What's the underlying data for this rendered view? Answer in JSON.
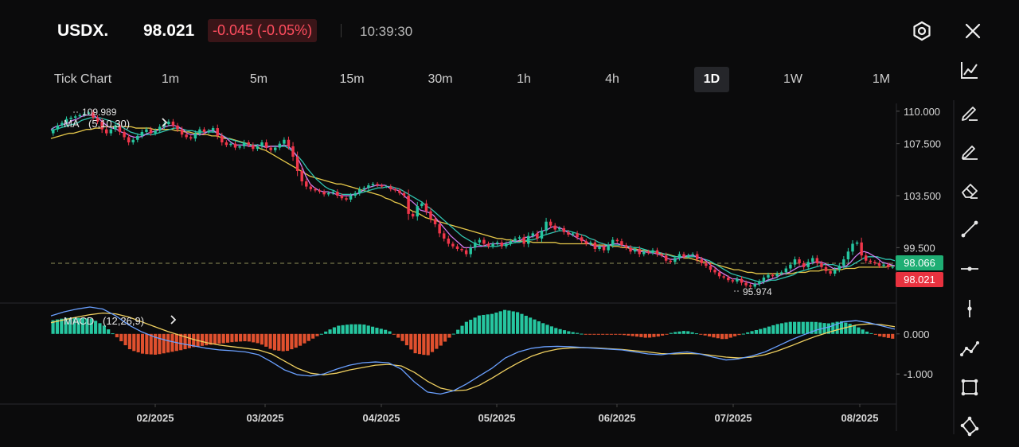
{
  "header": {
    "symbol": "USDX.",
    "price": "98.021",
    "change": "-0.045 (-0.05%)",
    "time": "10:39:30"
  },
  "tabs": [
    {
      "label": "Tick Chart",
      "active": false
    },
    {
      "label": "1m",
      "active": false
    },
    {
      "label": "5m",
      "active": false
    },
    {
      "label": "15m",
      "active": false
    },
    {
      "label": "30m",
      "active": false
    },
    {
      "label": "1h",
      "active": false
    },
    {
      "label": "4h",
      "active": false
    },
    {
      "label": "1D",
      "active": true
    },
    {
      "label": "1W",
      "active": false
    },
    {
      "label": "1M",
      "active": false
    }
  ],
  "toolbar": {
    "icons": [
      "line-chart-icon",
      "pencil-icon",
      "pen-icon",
      "eraser-icon",
      "trend-line-icon",
      "horizontal-line-icon",
      "vertical-line-icon",
      "polyline-icon",
      "rectangle-icon",
      "network-icon"
    ]
  },
  "colors": {
    "up": "#26c6a0",
    "down": "#f0364a",
    "ma5": "#d07cf0",
    "ma10": "#30c4b0",
    "ma30": "#e6c84a",
    "dif": "#6aa0ff",
    "dea": "#f0d060",
    "background": "#0b0b0c"
  },
  "chart_data": [
    {
      "type": "candlestick",
      "indicator_label": "MA",
      "indicator_params": "(5,10,30)",
      "y_tick_labels": [
        "110.000",
        "107.500",
        "103.500",
        "99.500"
      ],
      "y_ticks": [
        110.0,
        107.5,
        103.5,
        99.5
      ],
      "x_tick_labels": [
        "02/2025",
        "03/2025",
        "04/2025",
        "05/2025",
        "06/2025",
        "07/2025",
        "08/2025"
      ],
      "ylim": [
        95.3,
        110.6
      ],
      "high_annotation": {
        "label": "109.989",
        "value": 109.989
      },
      "low_annotation": {
        "label": "95.974",
        "value": 95.974
      },
      "last_value_label": "98.066",
      "current_price_label": "98.021",
      "reference_line": 98.066,
      "close": [
        108.6,
        108.9,
        109.1,
        109.4,
        109.5,
        109.6,
        109.7,
        109.8,
        109.9,
        109.5,
        109.2,
        108.6,
        108.3,
        108.6,
        108.9,
        108.4,
        108.0,
        107.6,
        107.8,
        108.1,
        108.4,
        108.6,
        108.3,
        108.5,
        108.8,
        109.0,
        109.2,
        108.9,
        108.6,
        108.2,
        108.0,
        107.9,
        108.3,
        108.6,
        108.4,
        108.5,
        108.7,
        108.1,
        107.6,
        107.4,
        107.5,
        107.2,
        107.3,
        107.6,
        107.4,
        107.1,
        107.3,
        107.6,
        107.2,
        107.0,
        107.2,
        107.5,
        107.8,
        107.3,
        106.5,
        105.4,
        104.6,
        104.2,
        104.0,
        103.9,
        103.8,
        103.6,
        103.7,
        103.8,
        103.5,
        103.3,
        103.2,
        103.5,
        103.7,
        104.0,
        104.1,
        104.3,
        104.4,
        104.3,
        104.2,
        104.2,
        104.0,
        103.9,
        103.7,
        103.5,
        102.1,
        101.9,
        102.7,
        102.9,
        102.3,
        101.7,
        101.3,
        100.6,
        100.2,
        99.8,
        99.6,
        99.4,
        99.3,
        99.0,
        99.5,
        99.9,
        100.1,
        99.8,
        99.6,
        99.8,
        99.9,
        99.6,
        99.8,
        100.0,
        100.2,
        100.3,
        99.8,
        100.4,
        100.6,
        100.2,
        100.8,
        101.5,
        101.2,
        100.9,
        101.0,
        100.7,
        100.5,
        100.6,
        100.3,
        100.0,
        99.8,
        99.9,
        99.4,
        99.6,
        99.3,
        99.7,
        100.1,
        100.0,
        99.7,
        99.5,
        99.2,
        99.4,
        99.0,
        99.2,
        99.1,
        99.3,
        99.0,
        98.9,
        98.5,
        98.4,
        98.7,
        99.0,
        98.8,
        98.9,
        99.0,
        98.6,
        98.3,
        98.1,
        97.8,
        97.6,
        97.3,
        97.2,
        97.0,
        96.9,
        97.1,
        96.8,
        96.6,
        96.5,
        96.7,
        96.9,
        97.2,
        97.4,
        97.3,
        97.5,
        97.6,
        97.9,
        98.2,
        98.6,
        98.3,
        98.0,
        98.4,
        98.7,
        98.3,
        98.0,
        97.7,
        97.5,
        97.8,
        98.1,
        98.6,
        99.2,
        99.8,
        99.9,
        98.9,
        98.5,
        98.4,
        98.3,
        98.1,
        98.2,
        98.0,
        98.021
      ],
      "ma5": [
        108.6,
        108.8,
        108.9,
        109.0,
        109.1,
        109.3,
        109.4,
        109.6,
        109.7,
        109.7,
        109.6,
        109.4,
        109.1,
        108.8,
        108.7,
        108.6,
        108.4,
        108.3,
        108.1,
        108.0,
        108.0,
        108.1,
        108.3,
        108.4,
        108.5,
        108.6,
        108.8,
        108.9,
        108.9,
        108.8,
        108.6,
        108.3,
        108.2,
        108.2,
        108.2,
        108.3,
        108.5,
        108.5,
        108.3,
        108.1,
        107.9,
        107.6,
        107.4,
        107.4,
        107.4,
        107.3,
        107.3,
        107.4,
        107.3,
        107.2,
        107.3,
        107.3,
        107.3,
        107.4,
        107.3,
        107.0,
        106.5,
        105.8,
        105.0,
        104.4,
        104.1,
        103.9,
        103.8,
        103.8,
        103.7,
        103.6,
        103.5,
        103.5,
        103.5,
        103.6,
        103.7,
        103.9,
        104.1,
        104.2,
        104.3,
        104.3,
        104.3,
        104.1,
        104.0,
        103.9,
        103.6,
        103.3,
        103.1,
        102.8,
        102.4,
        102.3,
        102.2,
        102.0,
        101.6,
        101.2,
        100.8,
        100.4,
        100.1,
        99.8,
        99.5,
        99.5,
        99.5,
        99.6,
        99.6,
        99.7,
        99.8,
        99.8,
        99.8,
        99.8,
        99.9,
        100.0,
        100.0,
        100.1,
        100.3,
        100.3,
        100.4,
        100.7,
        100.8,
        100.9,
        101.1,
        101.1,
        101.0,
        100.8,
        100.6,
        100.4,
        100.2,
        100.1,
        99.9,
        99.7,
        99.6,
        99.6,
        99.6,
        99.7,
        99.8,
        99.8,
        99.7,
        99.6,
        99.4,
        99.3,
        99.2,
        99.2,
        99.1,
        99.1,
        99.0,
        98.9,
        98.7,
        98.6,
        98.6,
        98.7,
        98.8,
        98.9,
        98.9,
        98.8,
        98.7,
        98.5,
        98.2,
        98.0,
        97.7,
        97.5,
        97.3,
        97.1,
        97.1,
        97.0,
        96.9,
        96.8,
        96.7,
        96.7,
        96.8,
        97.0,
        97.1,
        97.2,
        97.4,
        97.5,
        97.6,
        97.8,
        98.0,
        98.1,
        98.2,
        98.3,
        98.4,
        98.4,
        98.3,
        98.1,
        97.9,
        97.9,
        98.0,
        98.1,
        98.4,
        98.8,
        99.1,
        99.2,
        99.1,
        98.9,
        98.7,
        98.4,
        98.3,
        98.2,
        98.1
      ],
      "ma10": [
        108.5,
        108.6,
        108.7,
        108.8,
        108.9,
        109.0,
        109.1,
        109.3,
        109.4,
        109.5,
        109.5,
        109.5,
        109.4,
        109.3,
        109.2,
        109.0,
        108.8,
        108.6,
        108.4,
        108.3,
        108.2,
        108.2,
        108.2,
        108.2,
        108.3,
        108.4,
        108.5,
        108.6,
        108.7,
        108.7,
        108.6,
        108.5,
        108.5,
        108.4,
        108.4,
        108.4,
        108.4,
        108.4,
        108.3,
        108.1,
        107.9,
        107.8,
        107.7,
        107.6,
        107.5,
        107.4,
        107.4,
        107.4,
        107.3,
        107.3,
        107.3,
        107.3,
        107.3,
        107.3,
        107.1,
        106.8,
        106.5,
        106.1,
        105.6,
        105.2,
        104.8,
        104.5,
        104.2,
        104.0,
        103.9,
        103.7,
        103.6,
        103.6,
        103.6,
        103.6,
        103.7,
        103.8,
        103.9,
        104.0,
        104.1,
        104.1,
        104.2,
        104.2,
        104.1,
        104.0,
        103.8,
        103.6,
        103.4,
        103.2,
        103.0,
        102.7,
        102.5,
        102.2,
        101.9,
        101.6,
        101.3,
        101.0,
        100.7,
        100.4,
        100.2,
        100.0,
        99.8,
        99.7,
        99.6,
        99.6,
        99.6,
        99.6,
        99.7,
        99.7,
        99.8,
        99.9,
        99.9,
        100.0,
        100.1,
        100.1,
        100.2,
        100.4,
        100.5,
        100.6,
        100.7,
        100.8,
        100.8,
        100.8,
        100.7,
        100.6,
        100.5,
        100.4,
        100.2,
        100.1,
        99.9,
        99.8,
        99.7,
        99.7,
        99.7,
        99.7,
        99.6,
        99.6,
        99.5,
        99.5,
        99.4,
        99.3,
        99.2,
        99.2,
        99.1,
        99.0,
        98.9,
        98.8,
        98.8,
        98.8,
        98.8,
        98.8,
        98.8,
        98.7,
        98.6,
        98.5,
        98.3,
        98.1,
        97.9,
        97.7,
        97.5,
        97.4,
        97.3,
        97.2,
        97.1,
        97.0,
        96.9,
        96.9,
        96.9,
        97.0,
        97.0,
        97.1,
        97.2,
        97.3,
        97.4,
        97.6,
        97.7,
        97.8,
        97.9,
        98.0,
        98.1,
        98.2,
        98.2,
        98.2,
        98.1,
        98.0,
        98.0,
        98.1,
        98.3,
        98.5,
        98.7,
        98.8,
        98.8,
        98.8,
        98.7,
        98.6,
        98.6,
        98.5
      ],
      "ma30": [
        107.9,
        108.0,
        108.1,
        108.2,
        108.3,
        108.3,
        108.4,
        108.5,
        108.6,
        108.6,
        108.7,
        108.7,
        108.8,
        108.8,
        108.8,
        108.8,
        108.8,
        108.8,
        108.8,
        108.7,
        108.7,
        108.7,
        108.7,
        108.6,
        108.6,
        108.6,
        108.6,
        108.6,
        108.5,
        108.5,
        108.4,
        108.4,
        108.3,
        108.3,
        108.2,
        108.2,
        108.1,
        108.1,
        108.0,
        107.9,
        107.9,
        107.8,
        107.7,
        107.6,
        107.5,
        107.4,
        107.3,
        107.1,
        107.0,
        106.8,
        106.6,
        106.4,
        106.2,
        106.0,
        105.8,
        105.6,
        105.4,
        105.2,
        105.0,
        104.9,
        104.8,
        104.7,
        104.6,
        104.5,
        104.4,
        104.4,
        104.3,
        104.2,
        104.1,
        104.0,
        103.9,
        103.8,
        103.7,
        103.6,
        103.5,
        103.3,
        103.2,
        103.0,
        102.9,
        102.7,
        102.5,
        102.3,
        102.2,
        102.0,
        101.8,
        101.7,
        101.6,
        101.5,
        101.4,
        101.3,
        101.2,
        101.1,
        101.0,
        100.9,
        100.8,
        100.7,
        100.6,
        100.5,
        100.4,
        100.3,
        100.2,
        100.2,
        100.1,
        100.1,
        100.0,
        100.0,
        100.0,
        100.0,
        99.9,
        99.9,
        99.9,
        99.9,
        99.9,
        99.9,
        99.8,
        99.8,
        99.8,
        99.8,
        99.8,
        99.8,
        99.8,
        99.8,
        99.7,
        99.7,
        99.7,
        99.7,
        99.6,
        99.6,
        99.5,
        99.5,
        99.4,
        99.4,
        99.3,
        99.3,
        99.2,
        99.2,
        99.1,
        99.0,
        99.0,
        98.9,
        98.8,
        98.8,
        98.7,
        98.7,
        98.6,
        98.5,
        98.4,
        98.4,
        98.3,
        98.2,
        98.1,
        98.0,
        97.9,
        97.8,
        97.8,
        97.7,
        97.6,
        97.6,
        97.5,
        97.5,
        97.5,
        97.5,
        97.5,
        97.5,
        97.5,
        97.5,
        97.5,
        97.6,
        97.6,
        97.6,
        97.7,
        97.7,
        97.7,
        97.8,
        97.8,
        97.8,
        97.8,
        97.8,
        97.9,
        97.9,
        97.9,
        98.0,
        98.0,
        98.0,
        98.0,
        98.0,
        98.0,
        98.0,
        98.1,
        98.1
      ]
    },
    {
      "type": "macd",
      "indicator_label": "MACD",
      "indicator_params": "(12,26,9)",
      "y_tick_labels": [
        "0.000",
        "-1.000"
      ],
      "y_ticks": [
        0.0,
        -1.0
      ],
      "ylim": [
        -1.75,
        0.75
      ],
      "dif": [
        0.45,
        0.55,
        0.62,
        0.67,
        0.62,
        0.45,
        0.22,
        0.05,
        -0.08,
        -0.17,
        -0.24,
        -0.3,
        -0.36,
        -0.4,
        -0.42,
        -0.45,
        -0.52,
        -0.7,
        -0.9,
        -1.02,
        -1.05,
        -1.0,
        -0.88,
        -0.78,
        -0.72,
        -0.7,
        -0.72,
        -0.88,
        -1.2,
        -1.45,
        -1.5,
        -1.42,
        -1.25,
        -1.05,
        -0.85,
        -0.6,
        -0.45,
        -0.36,
        -0.32,
        -0.31,
        -0.32,
        -0.34,
        -0.36,
        -0.38,
        -0.4,
        -0.45,
        -0.5,
        -0.52,
        -0.48,
        -0.45,
        -0.5,
        -0.58,
        -0.65,
        -0.62,
        -0.55,
        -0.45,
        -0.3,
        -0.15,
        -0.02,
        0.1,
        0.18,
        0.3,
        0.33,
        0.28,
        0.2,
        0.12
      ],
      "dea": [
        0.28,
        0.35,
        0.42,
        0.48,
        0.52,
        0.5,
        0.42,
        0.3,
        0.18,
        0.06,
        -0.04,
        -0.14,
        -0.22,
        -0.28,
        -0.32,
        -0.36,
        -0.4,
        -0.5,
        -0.68,
        -0.86,
        -0.98,
        -1.02,
        -0.98,
        -0.9,
        -0.84,
        -0.78,
        -0.76,
        -0.8,
        -0.96,
        -1.18,
        -1.35,
        -1.42,
        -1.4,
        -1.28,
        -1.1,
        -0.9,
        -0.72,
        -0.56,
        -0.45,
        -0.38,
        -0.35,
        -0.34,
        -0.35,
        -0.37,
        -0.39,
        -0.42,
        -0.45,
        -0.49,
        -0.5,
        -0.49,
        -0.5,
        -0.54,
        -0.58,
        -0.6,
        -0.58,
        -0.52,
        -0.42,
        -0.3,
        -0.17,
        -0.05,
        0.05,
        0.14,
        0.22,
        0.25,
        0.23,
        0.18
      ]
    }
  ]
}
